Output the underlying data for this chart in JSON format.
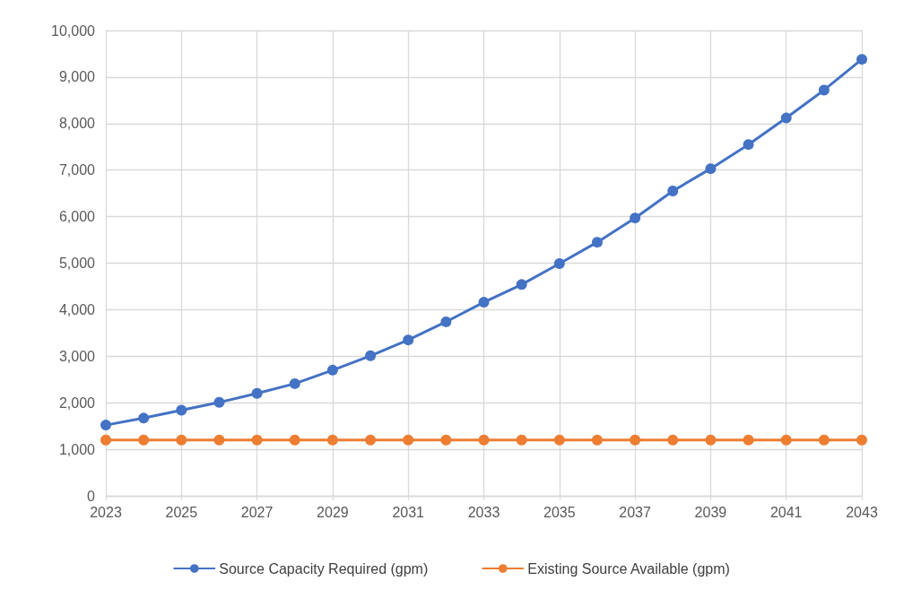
{
  "chart_data": {
    "type": "line",
    "x": [
      2023,
      2024,
      2025,
      2026,
      2027,
      2028,
      2029,
      2030,
      2031,
      2032,
      2033,
      2034,
      2035,
      2036,
      2037,
      2038,
      2039,
      2040,
      2041,
      2042,
      2043
    ],
    "series": [
      {
        "name": "Source Capacity Required (gpm)",
        "color": "#4472c4",
        "values": [
          1520,
          1670,
          1840,
          2010,
          2200,
          2410,
          2700,
          3010,
          3350,
          3740,
          4160,
          4540,
          4990,
          5450,
          5970,
          6550,
          7030,
          7550,
          8120,
          8720,
          9380
        ]
      },
      {
        "name": "Existing Source Available (gpm)",
        "color": "#ed7d31",
        "values": [
          1200,
          1200,
          1200,
          1200,
          1200,
          1200,
          1200,
          1200,
          1200,
          1200,
          1200,
          1200,
          1200,
          1200,
          1200,
          1200,
          1200,
          1200,
          1200,
          1200,
          1200
        ]
      }
    ],
    "xlim": [
      2023,
      2043
    ],
    "xticks": [
      2023,
      2025,
      2027,
      2029,
      2031,
      2033,
      2035,
      2037,
      2039,
      2041,
      2043
    ],
    "ylim": [
      0,
      10000
    ],
    "yticks": [
      0,
      {
        "value": 1000,
        "label": "1,000"
      },
      {
        "value": 2000,
        "label": "2,000"
      },
      {
        "value": 3000,
        "label": "3,000"
      },
      {
        "value": 4000,
        "label": "4,000"
      },
      {
        "value": 5000,
        "label": "5,000"
      },
      {
        "value": 6000,
        "label": "6,000"
      },
      {
        "value": 7000,
        "label": "7,000"
      },
      {
        "value": 8000,
        "label": "8,000"
      },
      {
        "value": 9000,
        "label": "9,000"
      },
      {
        "value": 10000,
        "label": "10,000"
      }
    ],
    "grid": true,
    "legend": "bottom",
    "marker": "circle",
    "line_style": "solid"
  }
}
